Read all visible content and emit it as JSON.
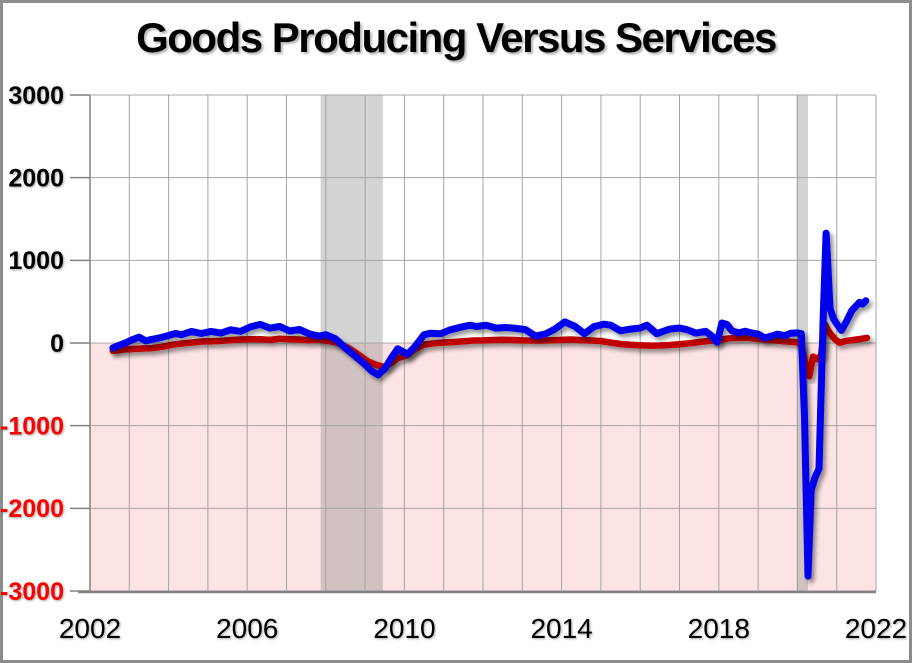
{
  "chart_data": {
    "type": "line",
    "title": "Goods Producing Versus Services",
    "xlabel": "",
    "ylabel": "",
    "xlim": [
      2002,
      2022
    ],
    "ylim": [
      -3000,
      3000
    ],
    "x_ticks": [
      2002,
      2006,
      2010,
      2014,
      2018,
      2022
    ],
    "y_ticks": [
      3000,
      2000,
      1000,
      0,
      -1000,
      -2000,
      -3000
    ],
    "grid": "on",
    "grid_x_interval_years": 1,
    "grid_y_interval": 1000,
    "legend_position": "none",
    "colors": {
      "gridline": "#A4A4A4",
      "axis": "#808080",
      "positive_tick_label": "#000000",
      "negative_tick_label": "#FF0000",
      "negative_region_fill": "#FDE3E4",
      "recession_band_fill": "rgba(128,128,128,0.35)",
      "plot_background": "#FFFFFF"
    },
    "recession_bands": [
      {
        "x0": 2007.87,
        "x1": 2009.45
      },
      {
        "x0": 2019.98,
        "x1": 2020.27
      }
    ],
    "series": [
      {
        "name": "Goods Producing",
        "color": "#C00000",
        "stroke_width": 6.5,
        "points": [
          [
            2002.58,
            -95
          ],
          [
            2002.83,
            -80
          ],
          [
            2003.08,
            -72
          ],
          [
            2003.33,
            -66
          ],
          [
            2003.58,
            -62
          ],
          [
            2003.83,
            -46
          ],
          [
            2004.08,
            -22
          ],
          [
            2004.33,
            -6
          ],
          [
            2004.58,
            5
          ],
          [
            2004.83,
            18
          ],
          [
            2005.08,
            22
          ],
          [
            2005.33,
            26
          ],
          [
            2005.58,
            35
          ],
          [
            2005.83,
            42
          ],
          [
            2006.08,
            46
          ],
          [
            2006.33,
            45
          ],
          [
            2006.58,
            38
          ],
          [
            2006.83,
            52
          ],
          [
            2007.08,
            46
          ],
          [
            2007.33,
            42
          ],
          [
            2007.58,
            34
          ],
          [
            2007.83,
            40
          ],
          [
            2008.08,
            24
          ],
          [
            2008.33,
            -2
          ],
          [
            2008.58,
            -62
          ],
          [
            2008.83,
            -140
          ],
          [
            2009.08,
            -225
          ],
          [
            2009.33,
            -272
          ],
          [
            2009.5,
            -288
          ],
          [
            2009.67,
            -242
          ],
          [
            2009.83,
            -182
          ],
          [
            2010.08,
            -148
          ],
          [
            2010.25,
            -78
          ],
          [
            2010.5,
            -18
          ],
          [
            2010.75,
            -4
          ],
          [
            2011.0,
            6
          ],
          [
            2011.25,
            12
          ],
          [
            2011.5,
            22
          ],
          [
            2011.75,
            30
          ],
          [
            2012.0,
            32
          ],
          [
            2012.25,
            36
          ],
          [
            2012.5,
            40
          ],
          [
            2012.75,
            36
          ],
          [
            2013.0,
            32
          ],
          [
            2013.25,
            30
          ],
          [
            2013.5,
            30
          ],
          [
            2013.75,
            34
          ],
          [
            2014.0,
            38
          ],
          [
            2014.25,
            42
          ],
          [
            2014.5,
            35
          ],
          [
            2014.75,
            30
          ],
          [
            2015.0,
            24
          ],
          [
            2015.25,
            5
          ],
          [
            2015.5,
            -12
          ],
          [
            2015.75,
            -22
          ],
          [
            2016.0,
            -28
          ],
          [
            2016.25,
            -31
          ],
          [
            2016.5,
            -30
          ],
          [
            2016.75,
            -24
          ],
          [
            2017.0,
            -15
          ],
          [
            2017.25,
            -4
          ],
          [
            2017.5,
            12
          ],
          [
            2017.75,
            25
          ],
          [
            2018.0,
            36
          ],
          [
            2018.25,
            56
          ],
          [
            2018.5,
            60
          ],
          [
            2018.75,
            60
          ],
          [
            2019.0,
            50
          ],
          [
            2019.25,
            40
          ],
          [
            2019.5,
            28
          ],
          [
            2019.75,
            18
          ],
          [
            2020.0,
            8
          ],
          [
            2020.1,
            -30
          ],
          [
            2020.18,
            -200
          ],
          [
            2020.3,
            -400
          ],
          [
            2020.4,
            -165
          ],
          [
            2020.5,
            -195
          ],
          [
            2020.6,
            -150
          ],
          [
            2020.7,
            225
          ],
          [
            2020.78,
            150
          ],
          [
            2020.85,
            105
          ],
          [
            2020.95,
            48
          ],
          [
            2021.08,
            2
          ],
          [
            2021.2,
            22
          ],
          [
            2021.33,
            30
          ],
          [
            2021.46,
            40
          ],
          [
            2021.6,
            48
          ],
          [
            2021.77,
            62
          ]
        ]
      },
      {
        "name": "Services",
        "color": "#0202EC",
        "stroke_width": 7,
        "points": [
          [
            2002.58,
            -60
          ],
          [
            2002.75,
            -25
          ],
          [
            2002.92,
            5
          ],
          [
            2003.08,
            40
          ],
          [
            2003.25,
            70
          ],
          [
            2003.42,
            25
          ],
          [
            2003.58,
            45
          ],
          [
            2003.75,
            60
          ],
          [
            2003.92,
            80
          ],
          [
            2004.17,
            115
          ],
          [
            2004.33,
            100
          ],
          [
            2004.58,
            140
          ],
          [
            2004.83,
            115
          ],
          [
            2005.08,
            140
          ],
          [
            2005.33,
            120
          ],
          [
            2005.58,
            160
          ],
          [
            2005.83,
            140
          ],
          [
            2006.08,
            195
          ],
          [
            2006.33,
            225
          ],
          [
            2006.58,
            180
          ],
          [
            2006.83,
            200
          ],
          [
            2007.08,
            145
          ],
          [
            2007.33,
            165
          ],
          [
            2007.58,
            110
          ],
          [
            2007.83,
            85
          ],
          [
            2008.0,
            100
          ],
          [
            2008.25,
            50
          ],
          [
            2008.5,
            -60
          ],
          [
            2008.75,
            -160
          ],
          [
            2009.0,
            -260
          ],
          [
            2009.17,
            -340
          ],
          [
            2009.33,
            -385
          ],
          [
            2009.5,
            -310
          ],
          [
            2009.67,
            -180
          ],
          [
            2009.83,
            -70
          ],
          [
            2010.08,
            -135
          ],
          [
            2010.25,
            -55
          ],
          [
            2010.5,
            100
          ],
          [
            2010.67,
            118
          ],
          [
            2010.92,
            112
          ],
          [
            2011.17,
            160
          ],
          [
            2011.42,
            190
          ],
          [
            2011.67,
            215
          ],
          [
            2011.83,
            200
          ],
          [
            2012.08,
            215
          ],
          [
            2012.33,
            180
          ],
          [
            2012.58,
            188
          ],
          [
            2012.83,
            178
          ],
          [
            2013.08,
            162
          ],
          [
            2013.33,
            85
          ],
          [
            2013.58,
            108
          ],
          [
            2013.83,
            168
          ],
          [
            2014.08,
            255
          ],
          [
            2014.33,
            205
          ],
          [
            2014.58,
            112
          ],
          [
            2014.83,
            200
          ],
          [
            2015.08,
            228
          ],
          [
            2015.25,
            215
          ],
          [
            2015.5,
            148
          ],
          [
            2015.75,
            168
          ],
          [
            2016.0,
            182
          ],
          [
            2016.17,
            215
          ],
          [
            2016.42,
            112
          ],
          [
            2016.75,
            168
          ],
          [
            2017.0,
            182
          ],
          [
            2017.17,
            165
          ],
          [
            2017.42,
            120
          ],
          [
            2017.67,
            142
          ],
          [
            2017.83,
            80
          ],
          [
            2017.96,
            8
          ],
          [
            2018.08,
            242
          ],
          [
            2018.21,
            222
          ],
          [
            2018.33,
            148
          ],
          [
            2018.5,
            122
          ],
          [
            2018.67,
            142
          ],
          [
            2018.83,
            122
          ],
          [
            2019.0,
            108
          ],
          [
            2019.17,
            62
          ],
          [
            2019.33,
            82
          ],
          [
            2019.5,
            108
          ],
          [
            2019.67,
            88
          ],
          [
            2019.83,
            118
          ],
          [
            2020.0,
            122
          ],
          [
            2020.1,
            112
          ],
          [
            2020.18,
            -900
          ],
          [
            2020.27,
            -2820
          ],
          [
            2020.35,
            -1780
          ],
          [
            2020.45,
            -1625
          ],
          [
            2020.55,
            -1520
          ],
          [
            2020.66,
            350
          ],
          [
            2020.73,
            1330
          ],
          [
            2020.78,
            880
          ],
          [
            2020.83,
            420
          ],
          [
            2020.92,
            290
          ],
          [
            2021.0,
            232
          ],
          [
            2021.12,
            152
          ],
          [
            2021.25,
            262
          ],
          [
            2021.38,
            388
          ],
          [
            2021.5,
            452
          ],
          [
            2021.58,
            492
          ],
          [
            2021.66,
            472
          ],
          [
            2021.74,
            512
          ]
        ]
      }
    ]
  }
}
